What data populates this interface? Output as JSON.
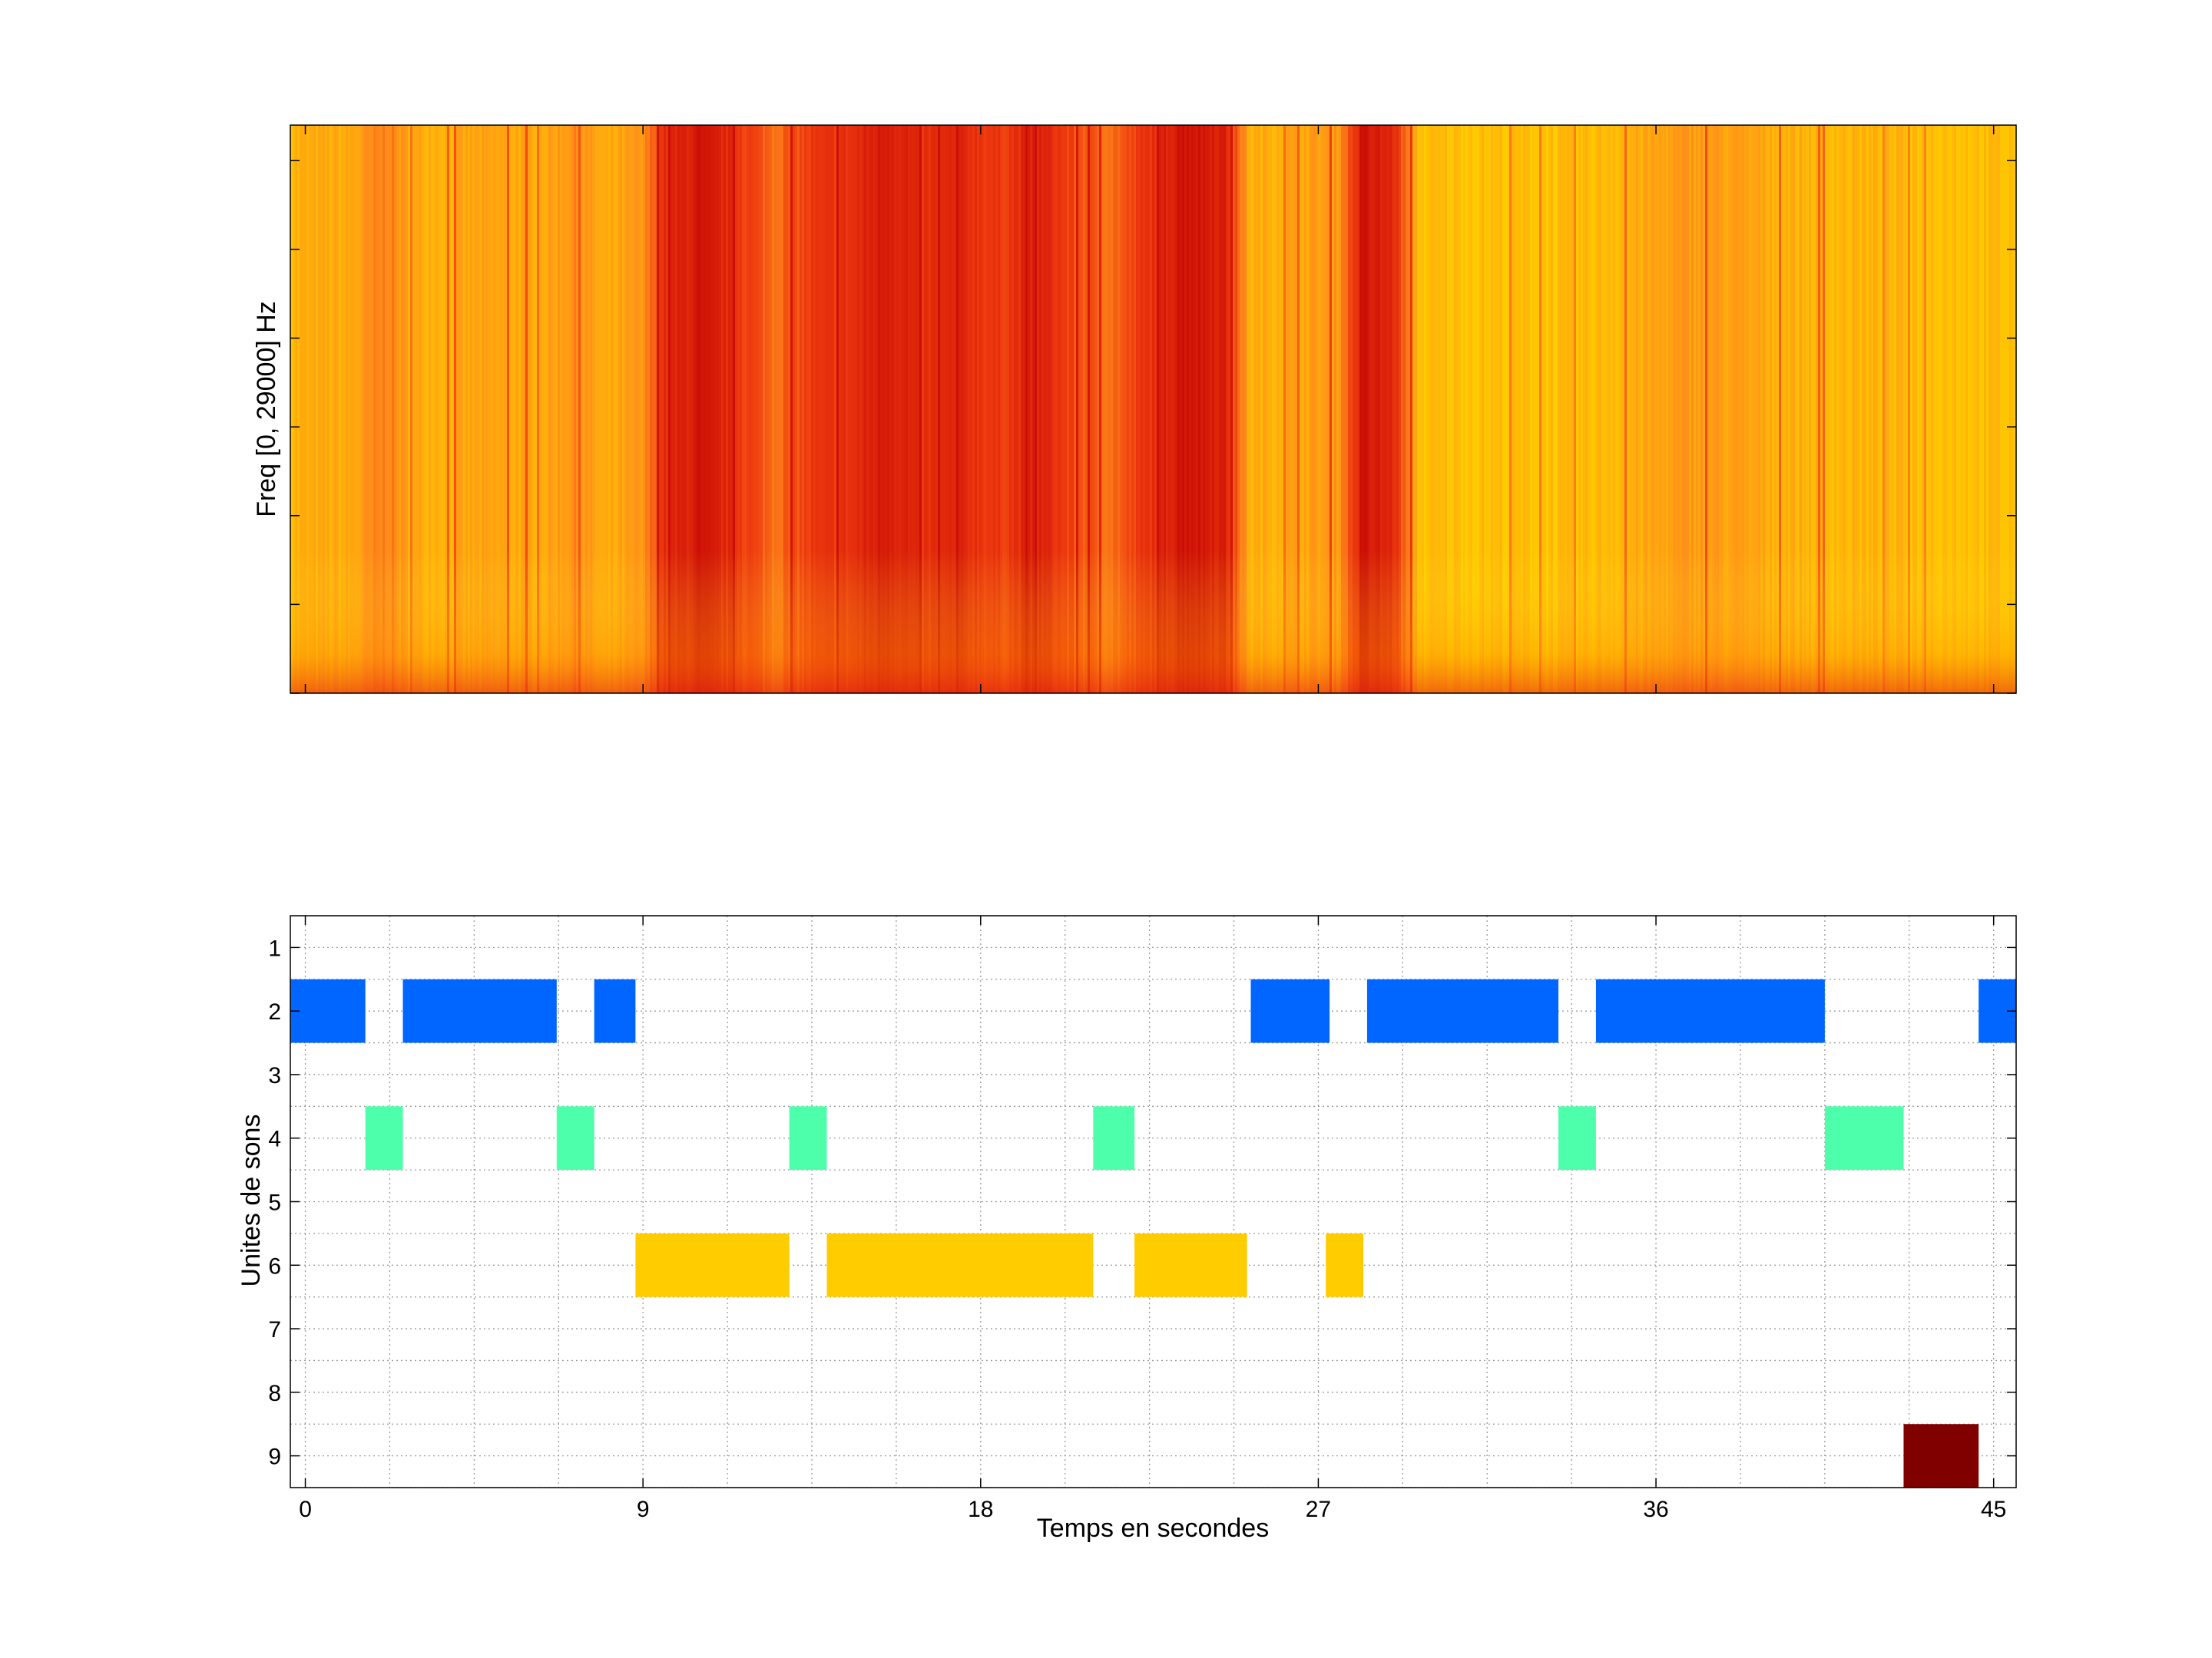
{
  "chart_data": [
    {
      "type": "heatmap",
      "ylabel": "Freq [0, 29000] Hz",
      "xlim": [
        -0.4,
        45.6
      ],
      "ylim": [
        0,
        29000
      ],
      "colormap": [
        "#ffff33",
        "#ffcc00",
        "#ff8c1a",
        "#ee3a0f",
        "#cc0f06"
      ],
      "energy_profile": [
        {
          "t": -0.4,
          "e": 0.35
        },
        {
          "t": 1.2,
          "e": 0.38
        },
        {
          "t": 2.2,
          "e": 0.55
        },
        {
          "t": 2.8,
          "e": 0.38
        },
        {
          "t": 6.5,
          "e": 0.4
        },
        {
          "t": 7.2,
          "e": 0.5
        },
        {
          "t": 8.0,
          "e": 0.35
        },
        {
          "t": 9.0,
          "e": 0.45
        },
        {
          "t": 9.5,
          "e": 0.8
        },
        {
          "t": 10.5,
          "e": 0.95
        },
        {
          "t": 11.5,
          "e": 0.8
        },
        {
          "t": 12.5,
          "e": 0.6
        },
        {
          "t": 13.5,
          "e": 0.75
        },
        {
          "t": 14.5,
          "e": 0.8
        },
        {
          "t": 15.5,
          "e": 0.95
        },
        {
          "t": 16.5,
          "e": 0.8
        },
        {
          "t": 17.5,
          "e": 0.85
        },
        {
          "t": 18.5,
          "e": 0.75
        },
        {
          "t": 19.5,
          "e": 0.9
        },
        {
          "t": 20.5,
          "e": 0.7
        },
        {
          "t": 21.5,
          "e": 0.6
        },
        {
          "t": 22.5,
          "e": 0.8
        },
        {
          "t": 23.5,
          "e": 1.0
        },
        {
          "t": 24.5,
          "e": 0.9
        },
        {
          "t": 25.2,
          "e": 0.35
        },
        {
          "t": 27.5,
          "e": 0.45
        },
        {
          "t": 28.2,
          "e": 0.95
        },
        {
          "t": 29.0,
          "e": 0.85
        },
        {
          "t": 29.7,
          "e": 0.3
        },
        {
          "t": 34.0,
          "e": 0.3
        },
        {
          "t": 37.0,
          "e": 0.45
        },
        {
          "t": 40.0,
          "e": 0.35
        },
        {
          "t": 45.6,
          "e": 0.3
        }
      ]
    },
    {
      "type": "bar",
      "orientation": "horizontal-segments",
      "xlabel": "Temps en secondes",
      "ylabel": "Unites de sons",
      "xlim": [
        -0.4,
        45.6
      ],
      "ylim": [
        0.5,
        9.5
      ],
      "x_ticks": [
        0,
        9,
        18,
        27,
        36,
        45
      ],
      "y_ticks": [
        1,
        2,
        3,
        4,
        5,
        6,
        7,
        8,
        9
      ],
      "grid": true,
      "series": [
        {
          "unit": 2,
          "color": "#0066ff",
          "segments": [
            [
              -0.4,
              1.6
            ],
            [
              2.6,
              6.7
            ],
            [
              7.7,
              8.8
            ],
            [
              25.2,
              27.3
            ],
            [
              28.3,
              33.4
            ],
            [
              34.4,
              40.5
            ],
            [
              44.6,
              45.6
            ]
          ]
        },
        {
          "unit": 4,
          "color": "#4dffaa",
          "segments": [
            [
              1.6,
              2.6
            ],
            [
              6.7,
              7.7
            ],
            [
              12.9,
              13.9
            ],
            [
              21.0,
              22.1
            ],
            [
              33.4,
              34.4
            ],
            [
              40.5,
              42.6
            ]
          ]
        },
        {
          "unit": 6,
          "color": "#ffcc00",
          "segments": [
            [
              8.8,
              12.9
            ],
            [
              13.9,
              21.0
            ],
            [
              22.1,
              25.1
            ],
            [
              27.2,
              28.2
            ]
          ]
        },
        {
          "unit": 9,
          "color": "#800000",
          "segments": [
            [
              42.6,
              44.6
            ]
          ]
        }
      ]
    }
  ]
}
